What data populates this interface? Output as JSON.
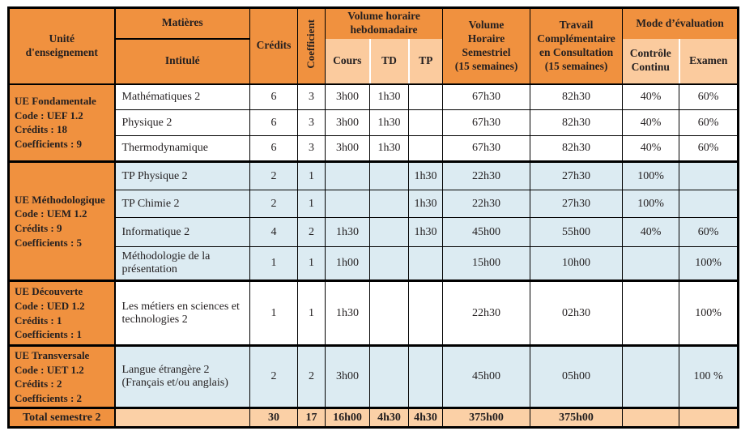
{
  "colors": {
    "orange": "#F0913F",
    "light_orange": "#FBCB9E",
    "light_blue": "#DCEBF2",
    "total_row_bg": "#FBD0A6",
    "border": "#000000",
    "text": "#231f20"
  },
  "header": {
    "unite": "Unité\nd'enseignement",
    "matieres": "Matières",
    "intitule": "Intitulé",
    "credits": "Crédits",
    "coefficient": "Coefficient",
    "volume_hebdo": "Volume horaire\nhebdomadaire",
    "cours": "Cours",
    "td": "TD",
    "tp": "TP",
    "vhs": "Volume\nHoraire\nSemestriel\n(15 semaines)",
    "tc": "Travail\nComplémentaire\nen Consultation\n(15 semaines)",
    "mode": "Mode d’évaluation",
    "cc": "Contrôle\nContinu",
    "examen": "Examen"
  },
  "groups": [
    {
      "ue": "UE Fondamentale\nCode : UEF 1.2\nCrédits : 18\nCoefficients : 9",
      "row_bg": "#FFFFFF",
      "rows": [
        {
          "intitule": "Mathématiques 2",
          "credits": "6",
          "coeff": "3",
          "cours": "3h00",
          "td": "1h30",
          "tp": "",
          "vhs": "67h30",
          "tc": "82h30",
          "cc": "40%",
          "examen": "60%"
        },
        {
          "intitule": "Physique 2",
          "credits": "6",
          "coeff": "3",
          "cours": "3h00",
          "td": "1h30",
          "tp": "",
          "vhs": "67h30",
          "tc": "82h30",
          "cc": "40%",
          "examen": "60%"
        },
        {
          "intitule": "Thermodynamique",
          "credits": "6",
          "coeff": "3",
          "cours": "3h00",
          "td": "1h30",
          "tp": "",
          "vhs": "67h30",
          "tc": "82h30",
          "cc": "40%",
          "examen": "60%"
        }
      ]
    },
    {
      "ue": "UE Méthodologique\nCode : UEM 1.2\nCrédits : 9\nCoefficients : 5",
      "row_bg": "#DCEBF2",
      "rows": [
        {
          "intitule": "TP Physique 2",
          "credits": "2",
          "coeff": "1",
          "cours": "",
          "td": "",
          "tp": "1h30",
          "vhs": "22h30",
          "tc": "27h30",
          "cc": "100%",
          "examen": ""
        },
        {
          "intitule": "TP Chimie 2",
          "credits": "2",
          "coeff": "1",
          "cours": "",
          "td": "",
          "tp": "1h30",
          "vhs": "22h30",
          "tc": "27h30",
          "cc": "100%",
          "examen": ""
        },
        {
          "intitule": "Informatique 2",
          "credits": "4",
          "coeff": "2",
          "cours": "1h30",
          "td": "",
          "tp": "1h30",
          "vhs": "45h00",
          "tc": "55h00",
          "cc": "40%",
          "examen": "60%"
        },
        {
          "intitule": "Méthodologie de la présentation",
          "credits": "1",
          "coeff": "1",
          "cours": "1h00",
          "td": "",
          "tp": "",
          "vhs": "15h00",
          "tc": "10h00",
          "cc": "",
          "examen": "100%"
        }
      ]
    },
    {
      "ue": "UE Découverte\nCode : UED 1.2\nCrédits : 1\nCoefficients : 1",
      "row_bg": "#FFFFFF",
      "rows": [
        {
          "intitule": "Les métiers en sciences et technologies 2",
          "credits": "1",
          "coeff": "1",
          "cours": "1h30",
          "td": "",
          "tp": "",
          "vhs": "22h30",
          "tc": "02h30",
          "cc": "",
          "examen": "100%"
        }
      ]
    },
    {
      "ue": "UE Transversale\nCode : UET 1.2\nCrédits : 2\nCoefficients : 2",
      "row_bg": "#DCEBF2",
      "rows": [
        {
          "intitule": "Langue étrangère 2 (Français et/ou anglais)",
          "credits": "2",
          "coeff": "2",
          "cours": "3h00",
          "td": "",
          "tp": "",
          "vhs": "45h00",
          "tc": "05h00",
          "cc": "",
          "examen": "100 %"
        }
      ]
    }
  ],
  "total": {
    "label": "Total semestre 2",
    "intitule": "",
    "credits": "30",
    "coeff": "17",
    "cours": "16h00",
    "td": "4h30",
    "tp": "4h30",
    "vhs": "375h00",
    "tc": "375h00",
    "cc": "",
    "examen": ""
  }
}
